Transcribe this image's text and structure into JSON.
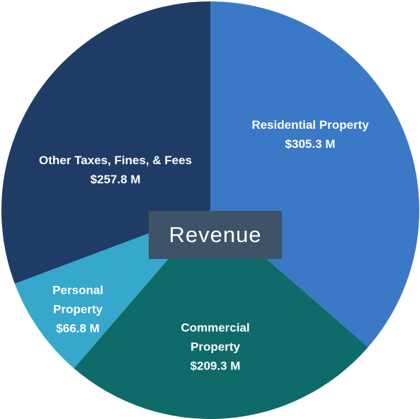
{
  "chart_data": {
    "type": "pie",
    "title": "Revenue",
    "categories": [
      "Residential Property",
      "Commercial Property",
      "Personal Property",
      "Other Taxes, Fines, & Fees"
    ],
    "values": [
      305.3,
      209.3,
      66.8,
      257.8
    ],
    "value_labels": [
      "$305.3 M",
      "$209.3 M",
      "$66.8 M",
      "$257.8 M"
    ],
    "colors": [
      "#3b79c6",
      "#0f6a6a",
      "#35a8cb",
      "#1f3c66"
    ]
  }
}
